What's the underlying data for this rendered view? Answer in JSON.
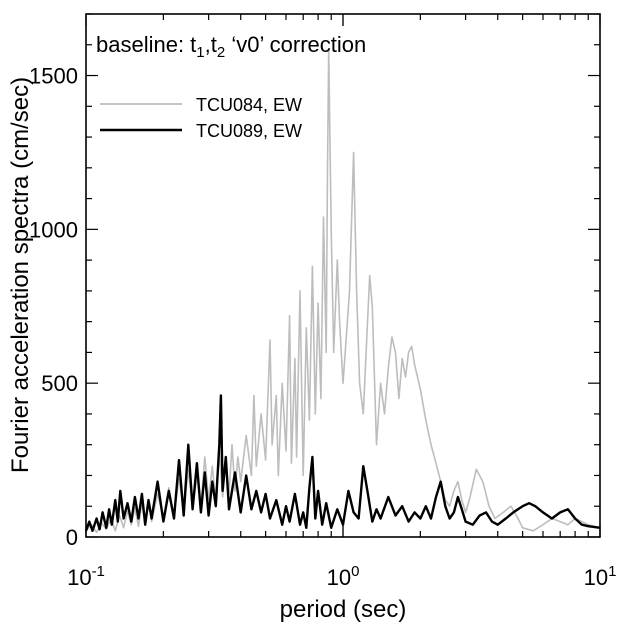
{
  "chart_data": {
    "type": "line",
    "xlabel": "period (sec)",
    "ylabel": "Fourier acceleration spectra (cm/sec)",
    "x_scale": "log",
    "xlim": [
      0.1,
      10
    ],
    "ylim": [
      0,
      1700
    ],
    "grid": false,
    "legend_position": "top-left",
    "x_ticks": [
      {
        "value": 0.1,
        "base": "10",
        "exp": "-1"
      },
      {
        "value": 1,
        "base": "10",
        "exp": "0"
      },
      {
        "value": 10,
        "base": "10",
        "exp": "1"
      }
    ],
    "y_ticks": [
      0,
      500,
      1000,
      1500
    ],
    "annotation": {
      "main": "baseline: t",
      "sub1": "1",
      "sep": ",t",
      "sub2": "2",
      "rest": " ‘v0’ correction"
    },
    "series": [
      {
        "name": "TCU084, EW",
        "color": "#bdbdbd",
        "points": [
          [
            0.1,
            20
          ],
          [
            0.105,
            40
          ],
          [
            0.11,
            15
          ],
          [
            0.115,
            45
          ],
          [
            0.12,
            25
          ],
          [
            0.125,
            60
          ],
          [
            0.13,
            20
          ],
          [
            0.135,
            70
          ],
          [
            0.14,
            30
          ],
          [
            0.145,
            85
          ],
          [
            0.15,
            40
          ],
          [
            0.155,
            95
          ],
          [
            0.16,
            35
          ],
          [
            0.165,
            110
          ],
          [
            0.17,
            45
          ],
          [
            0.175,
            120
          ],
          [
            0.18,
            50
          ],
          [
            0.19,
            140
          ],
          [
            0.2,
            60
          ],
          [
            0.21,
            160
          ],
          [
            0.22,
            70
          ],
          [
            0.23,
            190
          ],
          [
            0.24,
            80
          ],
          [
            0.25,
            220
          ],
          [
            0.26,
            90
          ],
          [
            0.27,
            200
          ],
          [
            0.28,
            100
          ],
          [
            0.29,
            260
          ],
          [
            0.3,
            120
          ],
          [
            0.31,
            230
          ],
          [
            0.32,
            110
          ],
          [
            0.33,
            280
          ],
          [
            0.34,
            130
          ],
          [
            0.35,
            250
          ],
          [
            0.36,
            140
          ],
          [
            0.37,
            300
          ],
          [
            0.38,
            150
          ],
          [
            0.39,
            260
          ],
          [
            0.4,
            180
          ],
          [
            0.42,
            330
          ],
          [
            0.44,
            200
          ],
          [
            0.45,
            460
          ],
          [
            0.46,
            230
          ],
          [
            0.48,
            400
          ],
          [
            0.5,
            250
          ],
          [
            0.52,
            640
          ],
          [
            0.53,
            300
          ],
          [
            0.55,
            460
          ],
          [
            0.56,
            200
          ],
          [
            0.58,
            500
          ],
          [
            0.6,
            280
          ],
          [
            0.62,
            720
          ],
          [
            0.63,
            240
          ],
          [
            0.65,
            580
          ],
          [
            0.66,
            260
          ],
          [
            0.68,
            800
          ],
          [
            0.7,
            200
          ],
          [
            0.72,
            680
          ],
          [
            0.74,
            380
          ],
          [
            0.76,
            880
          ],
          [
            0.78,
            400
          ],
          [
            0.8,
            760
          ],
          [
            0.82,
            450
          ],
          [
            0.84,
            1040
          ],
          [
            0.86,
            600
          ],
          [
            0.87,
            1200
          ],
          [
            0.88,
            1580
          ],
          [
            0.9,
            1000
          ],
          [
            0.92,
            600
          ],
          [
            0.95,
            900
          ],
          [
            0.97,
            700
          ],
          [
            1.0,
            500
          ],
          [
            1.03,
            650
          ],
          [
            1.06,
            800
          ],
          [
            1.1,
            1250
          ],
          [
            1.13,
            800
          ],
          [
            1.16,
            500
          ],
          [
            1.2,
            400
          ],
          [
            1.23,
            600
          ],
          [
            1.27,
            850
          ],
          [
            1.3,
            750
          ],
          [
            1.35,
            300
          ],
          [
            1.4,
            500
          ],
          [
            1.45,
            400
          ],
          [
            1.5,
            550
          ],
          [
            1.55,
            650
          ],
          [
            1.6,
            600
          ],
          [
            1.65,
            450
          ],
          [
            1.7,
            580
          ],
          [
            1.75,
            520
          ],
          [
            1.8,
            600
          ],
          [
            1.85,
            620
          ],
          [
            1.9,
            560
          ],
          [
            2.0,
            480
          ],
          [
            2.1,
            380
          ],
          [
            2.2,
            300
          ],
          [
            2.3,
            240
          ],
          [
            2.4,
            180
          ],
          [
            2.5,
            120
          ],
          [
            2.6,
            100
          ],
          [
            2.7,
            150
          ],
          [
            2.8,
            180
          ],
          [
            2.9,
            120
          ],
          [
            3.0,
            80
          ],
          [
            3.1,
            120
          ],
          [
            3.3,
            220
          ],
          [
            3.5,
            180
          ],
          [
            3.7,
            100
          ],
          [
            3.9,
            60
          ],
          [
            4.2,
            80
          ],
          [
            4.5,
            100
          ],
          [
            4.8,
            60
          ],
          [
            5.0,
            30
          ],
          [
            5.5,
            20
          ],
          [
            6.0,
            40
          ],
          [
            6.5,
            60
          ],
          [
            7.0,
            50
          ],
          [
            7.5,
            40
          ],
          [
            8.0,
            60
          ],
          [
            8.5,
            50
          ],
          [
            9.0,
            40
          ],
          [
            10.0,
            30
          ]
        ]
      },
      {
        "name": "TCU089, EW",
        "color": "#000000",
        "points": [
          [
            0.1,
            20
          ],
          [
            0.103,
            50
          ],
          [
            0.106,
            20
          ],
          [
            0.11,
            60
          ],
          [
            0.113,
            25
          ],
          [
            0.116,
            80
          ],
          [
            0.12,
            30
          ],
          [
            0.123,
            90
          ],
          [
            0.126,
            40
          ],
          [
            0.13,
            120
          ],
          [
            0.133,
            50
          ],
          [
            0.136,
            150
          ],
          [
            0.14,
            60
          ],
          [
            0.145,
            110
          ],
          [
            0.15,
            50
          ],
          [
            0.155,
            130
          ],
          [
            0.16,
            60
          ],
          [
            0.165,
            140
          ],
          [
            0.17,
            40
          ],
          [
            0.175,
            120
          ],
          [
            0.18,
            60
          ],
          [
            0.19,
            180
          ],
          [
            0.2,
            50
          ],
          [
            0.21,
            150
          ],
          [
            0.22,
            60
          ],
          [
            0.23,
            250
          ],
          [
            0.24,
            70
          ],
          [
            0.25,
            300
          ],
          [
            0.26,
            90
          ],
          [
            0.27,
            240
          ],
          [
            0.28,
            80
          ],
          [
            0.29,
            210
          ],
          [
            0.3,
            70
          ],
          [
            0.31,
            180
          ],
          [
            0.32,
            100
          ],
          [
            0.33,
            300
          ],
          [
            0.335,
            460
          ],
          [
            0.34,
            150
          ],
          [
            0.35,
            260
          ],
          [
            0.36,
            90
          ],
          [
            0.38,
            210
          ],
          [
            0.4,
            80
          ],
          [
            0.42,
            200
          ],
          [
            0.44,
            90
          ],
          [
            0.46,
            150
          ],
          [
            0.48,
            80
          ],
          [
            0.5,
            140
          ],
          [
            0.52,
            60
          ],
          [
            0.55,
            120
          ],
          [
            0.58,
            40
          ],
          [
            0.6,
            100
          ],
          [
            0.62,
            50
          ],
          [
            0.65,
            140
          ],
          [
            0.68,
            40
          ],
          [
            0.7,
            80
          ],
          [
            0.72,
            30
          ],
          [
            0.74,
            160
          ],
          [
            0.76,
            260
          ],
          [
            0.78,
            60
          ],
          [
            0.8,
            150
          ],
          [
            0.83,
            40
          ],
          [
            0.86,
            110
          ],
          [
            0.9,
            30
          ],
          [
            0.95,
            90
          ],
          [
            1.0,
            40
          ],
          [
            1.05,
            150
          ],
          [
            1.1,
            80
          ],
          [
            1.15,
            60
          ],
          [
            1.2,
            230
          ],
          [
            1.25,
            140
          ],
          [
            1.3,
            50
          ],
          [
            1.35,
            90
          ],
          [
            1.4,
            60
          ],
          [
            1.5,
            130
          ],
          [
            1.6,
            70
          ],
          [
            1.7,
            100
          ],
          [
            1.8,
            50
          ],
          [
            1.9,
            80
          ],
          [
            2.0,
            60
          ],
          [
            2.1,
            100
          ],
          [
            2.2,
            60
          ],
          [
            2.3,
            130
          ],
          [
            2.4,
            180
          ],
          [
            2.5,
            100
          ],
          [
            2.6,
            60
          ],
          [
            2.7,
            80
          ],
          [
            2.8,
            130
          ],
          [
            2.9,
            90
          ],
          [
            3.0,
            50
          ],
          [
            3.2,
            40
          ],
          [
            3.4,
            70
          ],
          [
            3.6,
            80
          ],
          [
            3.8,
            50
          ],
          [
            4.0,
            40
          ],
          [
            4.3,
            60
          ],
          [
            4.6,
            80
          ],
          [
            5.0,
            100
          ],
          [
            5.3,
            110
          ],
          [
            5.6,
            100
          ],
          [
            6.0,
            80
          ],
          [
            6.5,
            60
          ],
          [
            7.0,
            80
          ],
          [
            7.5,
            90
          ],
          [
            8.0,
            60
          ],
          [
            8.5,
            40
          ],
          [
            9.0,
            35
          ],
          [
            10.0,
            30
          ]
        ]
      }
    ]
  }
}
